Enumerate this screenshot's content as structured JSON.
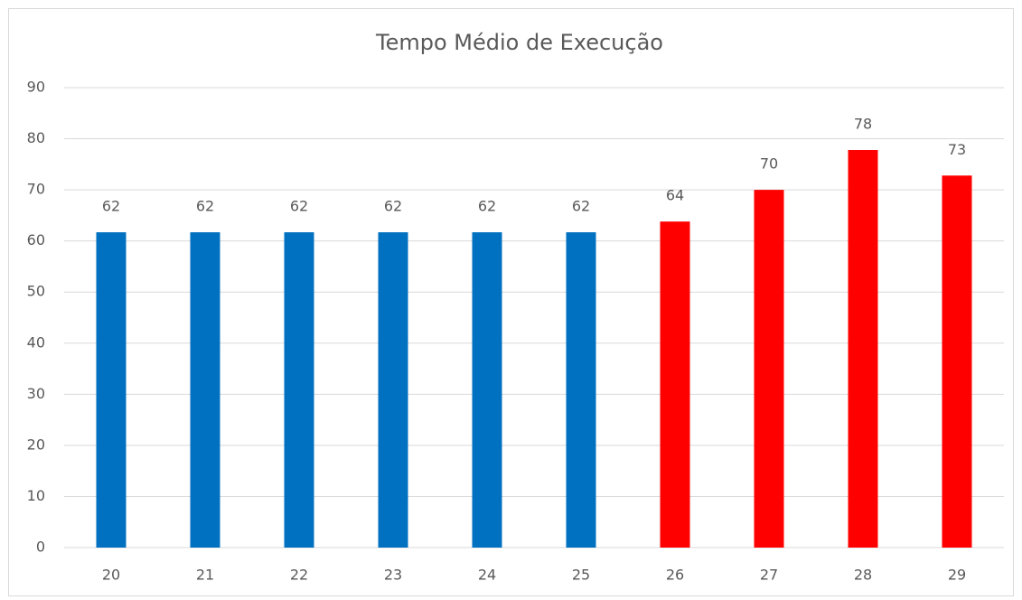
{
  "chart_data": {
    "type": "bar",
    "title": "Tempo Médio de Execução",
    "categories": [
      "20",
      "21",
      "22",
      "23",
      "24",
      "25",
      "26",
      "27",
      "28",
      "29"
    ],
    "values": [
      61.7,
      61.7,
      61.7,
      61.7,
      61.7,
      61.7,
      63.8,
      70,
      77.8,
      72.8
    ],
    "value_labels": [
      "62",
      "62",
      "62",
      "62",
      "62",
      "62",
      "64",
      "70",
      "78",
      "73"
    ],
    "colors": [
      "#0070c0",
      "#0070c0",
      "#0070c0",
      "#0070c0",
      "#0070c0",
      "#0070c0",
      "#ff0000",
      "#ff0000",
      "#ff0000",
      "#ff0000"
    ],
    "ylim": [
      0,
      90
    ],
    "yticks": [
      0,
      10,
      20,
      30,
      40,
      50,
      60,
      70,
      80,
      90
    ],
    "grid": true
  }
}
